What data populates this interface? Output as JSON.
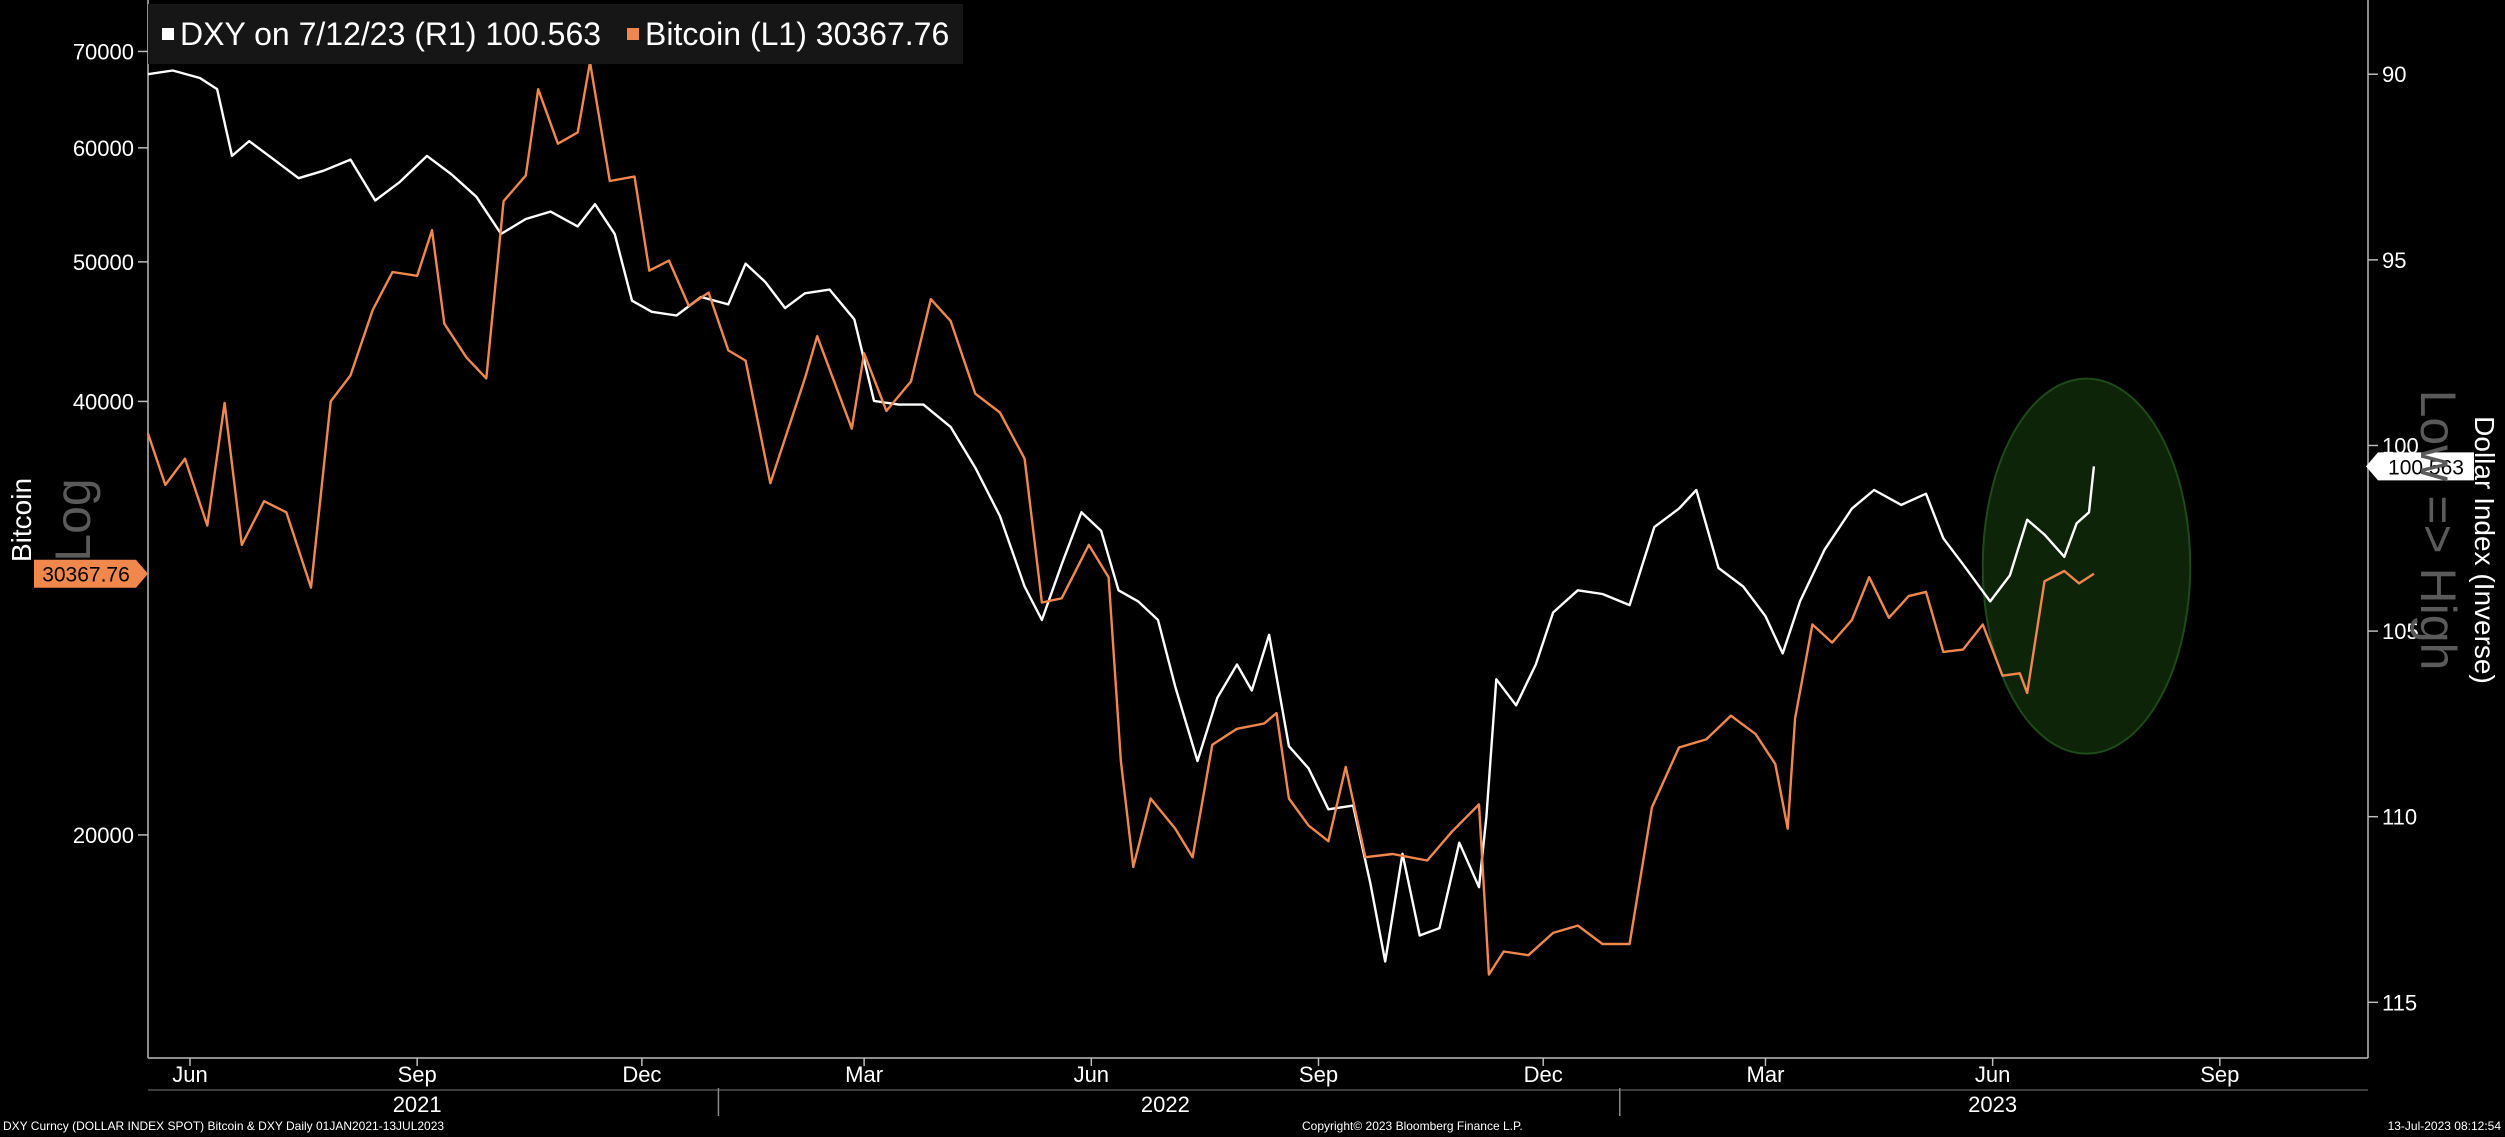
{
  "legend": {
    "dxy_label": "DXY on 7/12/23 (R1) 100.563",
    "btc_label": "Bitcoin (L1) 30367.76"
  },
  "axis_titles": {
    "left": "Bitcoin",
    "left_watermark": "Log",
    "right": "Dollar Index (Inverse)",
    "right_watermark": "Low => High"
  },
  "footer": {
    "left": "DXY Curncy (DOLLAR INDEX SPOT) Bitcoin & DXY Daily 01JAN2021-13JUL2023",
    "center": "Copyright© 2023 Bloomberg Finance L.P.",
    "right": "13-Jul-2023 08:12:54"
  },
  "colors": {
    "background": "#000000",
    "dxy": "#ffffff",
    "btc": "#f0884e",
    "highlight_fill": "#0d2408",
    "highlight_stroke": "#1e4a1a"
  },
  "chart_data": {
    "type": "line",
    "title": "",
    "left_axis": {
      "label": "Bitcoin",
      "scale": "log",
      "ticks": [
        20000,
        40000,
        50000,
        60000,
        70000
      ],
      "range": [
        14000,
        76000
      ]
    },
    "right_axis": {
      "label": "Dollar Index (Inverse)",
      "inverted": true,
      "ticks": [
        90,
        95,
        100,
        105,
        110,
        115
      ],
      "range": [
        88,
        116.5
      ]
    },
    "x_axis": {
      "range": [
        "2021-05-15",
        "2023-10-31"
      ],
      "month_ticks": [
        {
          "label": "Jun",
          "date": "2021-06-01"
        },
        {
          "label": "Sep",
          "date": "2021-09-01"
        },
        {
          "label": "Dec",
          "date": "2021-12-01"
        },
        {
          "label": "Mar",
          "date": "2022-03-01"
        },
        {
          "label": "Jun",
          "date": "2022-06-01"
        },
        {
          "label": "Sep",
          "date": "2022-09-01"
        },
        {
          "label": "Dec",
          "date": "2022-12-01"
        },
        {
          "label": "Mar",
          "date": "2023-03-01"
        },
        {
          "label": "Jun",
          "date": "2023-06-01"
        },
        {
          "label": "Sep",
          "date": "2023-09-01"
        }
      ],
      "year_labels": [
        {
          "label": "2021",
          "date": "2021-09-01"
        },
        {
          "label": "2022",
          "date": "2022-07-01"
        },
        {
          "label": "2023",
          "date": "2023-06-01"
        }
      ],
      "year_separators": [
        "2022-01-01",
        "2023-01-01"
      ]
    },
    "last_values": {
      "dxy": "100.563",
      "btc": "30367.76"
    },
    "series": [
      {
        "name": "DXY",
        "axis": "right",
        "points": [
          [
            "2021-05-15",
            90.0
          ],
          [
            "2021-05-25",
            89.9
          ],
          [
            "2021-06-05",
            90.1
          ],
          [
            "2021-06-12",
            90.4
          ],
          [
            "2021-06-18",
            92.2
          ],
          [
            "2021-06-25",
            91.8
          ],
          [
            "2021-07-05",
            92.3
          ],
          [
            "2021-07-15",
            92.8
          ],
          [
            "2021-07-25",
            92.6
          ],
          [
            "2021-08-05",
            92.3
          ],
          [
            "2021-08-15",
            93.4
          ],
          [
            "2021-08-25",
            92.9
          ],
          [
            "2021-09-05",
            92.2
          ],
          [
            "2021-09-15",
            92.7
          ],
          [
            "2021-09-25",
            93.3
          ],
          [
            "2021-10-05",
            94.3
          ],
          [
            "2021-10-15",
            93.9
          ],
          [
            "2021-10-25",
            93.7
          ],
          [
            "2021-11-05",
            94.1
          ],
          [
            "2021-11-12",
            93.5
          ],
          [
            "2021-11-20",
            94.3
          ],
          [
            "2021-11-27",
            96.1
          ],
          [
            "2021-12-05",
            96.4
          ],
          [
            "2021-12-15",
            96.5
          ],
          [
            "2021-12-25",
            96.0
          ],
          [
            "2022-01-05",
            96.2
          ],
          [
            "2022-01-12",
            95.1
          ],
          [
            "2022-01-20",
            95.6
          ],
          [
            "2022-01-28",
            96.3
          ],
          [
            "2022-02-05",
            95.9
          ],
          [
            "2022-02-15",
            95.8
          ],
          [
            "2022-02-25",
            96.6
          ],
          [
            "2022-03-05",
            98.8
          ],
          [
            "2022-03-15",
            98.9
          ],
          [
            "2022-03-25",
            98.9
          ],
          [
            "2022-04-05",
            99.5
          ],
          [
            "2022-04-15",
            100.6
          ],
          [
            "2022-04-25",
            101.9
          ],
          [
            "2022-05-05",
            103.8
          ],
          [
            "2022-05-12",
            104.7
          ],
          [
            "2022-05-20",
            103.2
          ],
          [
            "2022-05-28",
            101.8
          ],
          [
            "2022-06-05",
            102.3
          ],
          [
            "2022-06-12",
            103.9
          ],
          [
            "2022-06-20",
            104.2
          ],
          [
            "2022-06-28",
            104.7
          ],
          [
            "2022-07-05",
            106.5
          ],
          [
            "2022-07-14",
            108.5
          ],
          [
            "2022-07-22",
            106.8
          ],
          [
            "2022-07-30",
            105.9
          ],
          [
            "2022-08-05",
            106.6
          ],
          [
            "2022-08-12",
            105.1
          ],
          [
            "2022-08-20",
            108.1
          ],
          [
            "2022-08-28",
            108.7
          ],
          [
            "2022-09-05",
            109.8
          ],
          [
            "2022-09-15",
            109.7
          ],
          [
            "2022-09-22",
            111.8
          ],
          [
            "2022-09-28",
            113.9
          ],
          [
            "2022-10-05",
            111.0
          ],
          [
            "2022-10-12",
            113.2
          ],
          [
            "2022-10-20",
            113.0
          ],
          [
            "2022-10-28",
            110.7
          ],
          [
            "2022-11-05",
            111.9
          ],
          [
            "2022-11-08",
            110.0
          ],
          [
            "2022-11-12",
            106.3
          ],
          [
            "2022-11-20",
            107.0
          ],
          [
            "2022-11-28",
            105.9
          ],
          [
            "2022-12-05",
            104.5
          ],
          [
            "2022-12-15",
            103.9
          ],
          [
            "2022-12-25",
            104.0
          ],
          [
            "2023-01-05",
            104.3
          ],
          [
            "2023-01-15",
            102.2
          ],
          [
            "2023-01-25",
            101.7
          ],
          [
            "2023-02-01",
            101.2
          ],
          [
            "2023-02-10",
            103.3
          ],
          [
            "2023-02-20",
            103.8
          ],
          [
            "2023-03-01",
            104.6
          ],
          [
            "2023-03-08",
            105.6
          ],
          [
            "2023-03-15",
            104.2
          ],
          [
            "2023-03-25",
            102.8
          ],
          [
            "2023-04-05",
            101.7
          ],
          [
            "2023-04-14",
            101.2
          ],
          [
            "2023-04-25",
            101.6
          ],
          [
            "2023-05-05",
            101.3
          ],
          [
            "2023-05-12",
            102.5
          ],
          [
            "2023-05-20",
            103.2
          ],
          [
            "2023-05-31",
            104.2
          ],
          [
            "2023-06-08",
            103.5
          ],
          [
            "2023-06-15",
            102.0
          ],
          [
            "2023-06-22",
            102.4
          ],
          [
            "2023-06-30",
            103.0
          ],
          [
            "2023-07-05",
            102.1
          ],
          [
            "2023-07-10",
            101.8
          ],
          [
            "2023-07-12",
            100.563
          ]
        ]
      },
      {
        "name": "Bitcoin",
        "axis": "left",
        "points": [
          [
            "2021-05-15",
            38000
          ],
          [
            "2021-05-22",
            35000
          ],
          [
            "2021-05-30",
            36500
          ],
          [
            "2021-06-08",
            32800
          ],
          [
            "2021-06-15",
            39900
          ],
          [
            "2021-06-22",
            31800
          ],
          [
            "2021-07-01",
            34100
          ],
          [
            "2021-07-10",
            33500
          ],
          [
            "2021-07-20",
            29700
          ],
          [
            "2021-07-28",
            40000
          ],
          [
            "2021-08-05",
            41700
          ],
          [
            "2021-08-14",
            46300
          ],
          [
            "2021-08-22",
            49200
          ],
          [
            "2021-09-01",
            48900
          ],
          [
            "2021-09-07",
            52600
          ],
          [
            "2021-09-12",
            45300
          ],
          [
            "2021-09-21",
            42900
          ],
          [
            "2021-09-29",
            41500
          ],
          [
            "2021-10-06",
            55100
          ],
          [
            "2021-10-15",
            57400
          ],
          [
            "2021-10-20",
            65900
          ],
          [
            "2021-10-28",
            60400
          ],
          [
            "2021-11-05",
            61500
          ],
          [
            "2021-11-10",
            68800
          ],
          [
            "2021-11-18",
            56900
          ],
          [
            "2021-11-28",
            57300
          ],
          [
            "2021-12-04",
            49300
          ],
          [
            "2021-12-12",
            50100
          ],
          [
            "2021-12-20",
            46600
          ],
          [
            "2021-12-28",
            47600
          ],
          [
            "2022-01-05",
            43400
          ],
          [
            "2022-01-12",
            42700
          ],
          [
            "2022-01-22",
            35100
          ],
          [
            "2022-02-05",
            41500
          ],
          [
            "2022-02-10",
            44400
          ],
          [
            "2022-02-24",
            38300
          ],
          [
            "2022-03-01",
            43200
          ],
          [
            "2022-03-10",
            39400
          ],
          [
            "2022-03-20",
            41300
          ],
          [
            "2022-03-28",
            47100
          ],
          [
            "2022-04-05",
            45500
          ],
          [
            "2022-04-15",
            40500
          ],
          [
            "2022-04-25",
            39300
          ],
          [
            "2022-05-05",
            36500
          ],
          [
            "2022-05-12",
            29000
          ],
          [
            "2022-05-20",
            29200
          ],
          [
            "2022-05-31",
            31800
          ],
          [
            "2022-06-08",
            30200
          ],
          [
            "2022-06-13",
            22500
          ],
          [
            "2022-06-18",
            19000
          ],
          [
            "2022-06-25",
            21200
          ],
          [
            "2022-07-05",
            20200
          ],
          [
            "2022-07-12",
            19300
          ],
          [
            "2022-07-20",
            23100
          ],
          [
            "2022-07-30",
            23700
          ],
          [
            "2022-08-10",
            23900
          ],
          [
            "2022-08-15",
            24300
          ],
          [
            "2022-08-20",
            21200
          ],
          [
            "2022-08-28",
            20300
          ],
          [
            "2022-09-05",
            19800
          ],
          [
            "2022-09-12",
            22300
          ],
          [
            "2022-09-20",
            19300
          ],
          [
            "2022-10-01",
            19400
          ],
          [
            "2022-10-15",
            19200
          ],
          [
            "2022-10-25",
            20100
          ],
          [
            "2022-11-05",
            21000
          ],
          [
            "2022-11-09",
            16000
          ],
          [
            "2022-11-15",
            16600
          ],
          [
            "2022-11-25",
            16500
          ],
          [
            "2022-12-05",
            17100
          ],
          [
            "2022-12-15",
            17300
          ],
          [
            "2022-12-25",
            16800
          ],
          [
            "2023-01-05",
            16800
          ],
          [
            "2023-01-14",
            20900
          ],
          [
            "2023-01-25",
            23000
          ],
          [
            "2023-02-05",
            23300
          ],
          [
            "2023-02-15",
            24200
          ],
          [
            "2023-02-25",
            23500
          ],
          [
            "2023-03-05",
            22400
          ],
          [
            "2023-03-10",
            20200
          ],
          [
            "2023-03-13",
            24100
          ],
          [
            "2023-03-20",
            28000
          ],
          [
            "2023-03-28",
            27200
          ],
          [
            "2023-04-05",
            28200
          ],
          [
            "2023-04-12",
            30200
          ],
          [
            "2023-04-20",
            28300
          ],
          [
            "2023-04-28",
            29300
          ],
          [
            "2023-05-05",
            29500
          ],
          [
            "2023-05-12",
            26800
          ],
          [
            "2023-05-20",
            26900
          ],
          [
            "2023-05-28",
            28000
          ],
          [
            "2023-06-05",
            25800
          ],
          [
            "2023-06-12",
            25900
          ],
          [
            "2023-06-15",
            25100
          ],
          [
            "2023-06-22",
            30000
          ],
          [
            "2023-06-30",
            30500
          ],
          [
            "2023-07-06",
            29900
          ],
          [
            "2023-07-12",
            30367.76
          ]
        ]
      }
    ]
  }
}
